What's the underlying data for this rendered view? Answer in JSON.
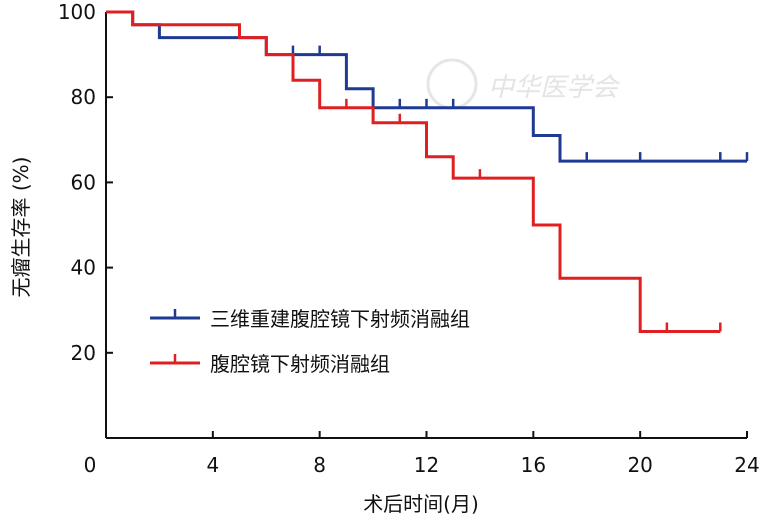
{
  "chart_data": {
    "type": "line",
    "step": true,
    "xlabel": "术后时间(月)",
    "ylabel": "无瘤生存率 (%)",
    "xlim": [
      0,
      24
    ],
    "ylim": [
      0,
      100
    ],
    "x_ticks": [
      0,
      4,
      8,
      12,
      16,
      20,
      24
    ],
    "y_ticks": [
      20,
      40,
      60,
      80,
      100
    ],
    "grid": false,
    "legend_position": "lower-left",
    "watermark": "中华医学会",
    "series": [
      {
        "name": "三维重建腹腔镜下射频消融组",
        "color": "#1f3a93",
        "x": [
          0,
          1,
          1,
          2,
          2,
          6,
          6,
          9,
          9,
          10,
          10,
          16,
          16,
          17,
          17,
          24
        ],
        "y": [
          100,
          100,
          97,
          97,
          94,
          94,
          90,
          90,
          82,
          82,
          77.5,
          77.5,
          71,
          71,
          65,
          65
        ],
        "censored": [
          {
            "x": 7,
            "y": 90
          },
          {
            "x": 8,
            "y": 90
          },
          {
            "x": 11,
            "y": 77.5
          },
          {
            "x": 12,
            "y": 77.5
          },
          {
            "x": 13,
            "y": 77.5
          },
          {
            "x": 18,
            "y": 65
          },
          {
            "x": 20,
            "y": 65
          },
          {
            "x": 23,
            "y": 65
          },
          {
            "x": 24,
            "y": 65
          }
        ]
      },
      {
        "name": "腹腔镜下射频消融组",
        "color": "#e02020",
        "x": [
          0,
          1,
          1,
          5,
          5,
          6,
          6,
          7,
          7,
          8,
          8,
          10,
          10,
          12,
          12,
          13,
          13,
          16,
          16,
          17,
          17,
          20,
          20,
          23
        ],
        "y": [
          100,
          100,
          97,
          97,
          94,
          94,
          90,
          90,
          84,
          84,
          77.5,
          77.5,
          74,
          74,
          66,
          66,
          61,
          61,
          50,
          50,
          37.5,
          37.5,
          25,
          25
        ],
        "censored": [
          {
            "x": 9,
            "y": 77.5
          },
          {
            "x": 11,
            "y": 74
          },
          {
            "x": 14,
            "y": 61
          },
          {
            "x": 21,
            "y": 25
          },
          {
            "x": 23,
            "y": 25
          }
        ]
      }
    ]
  }
}
